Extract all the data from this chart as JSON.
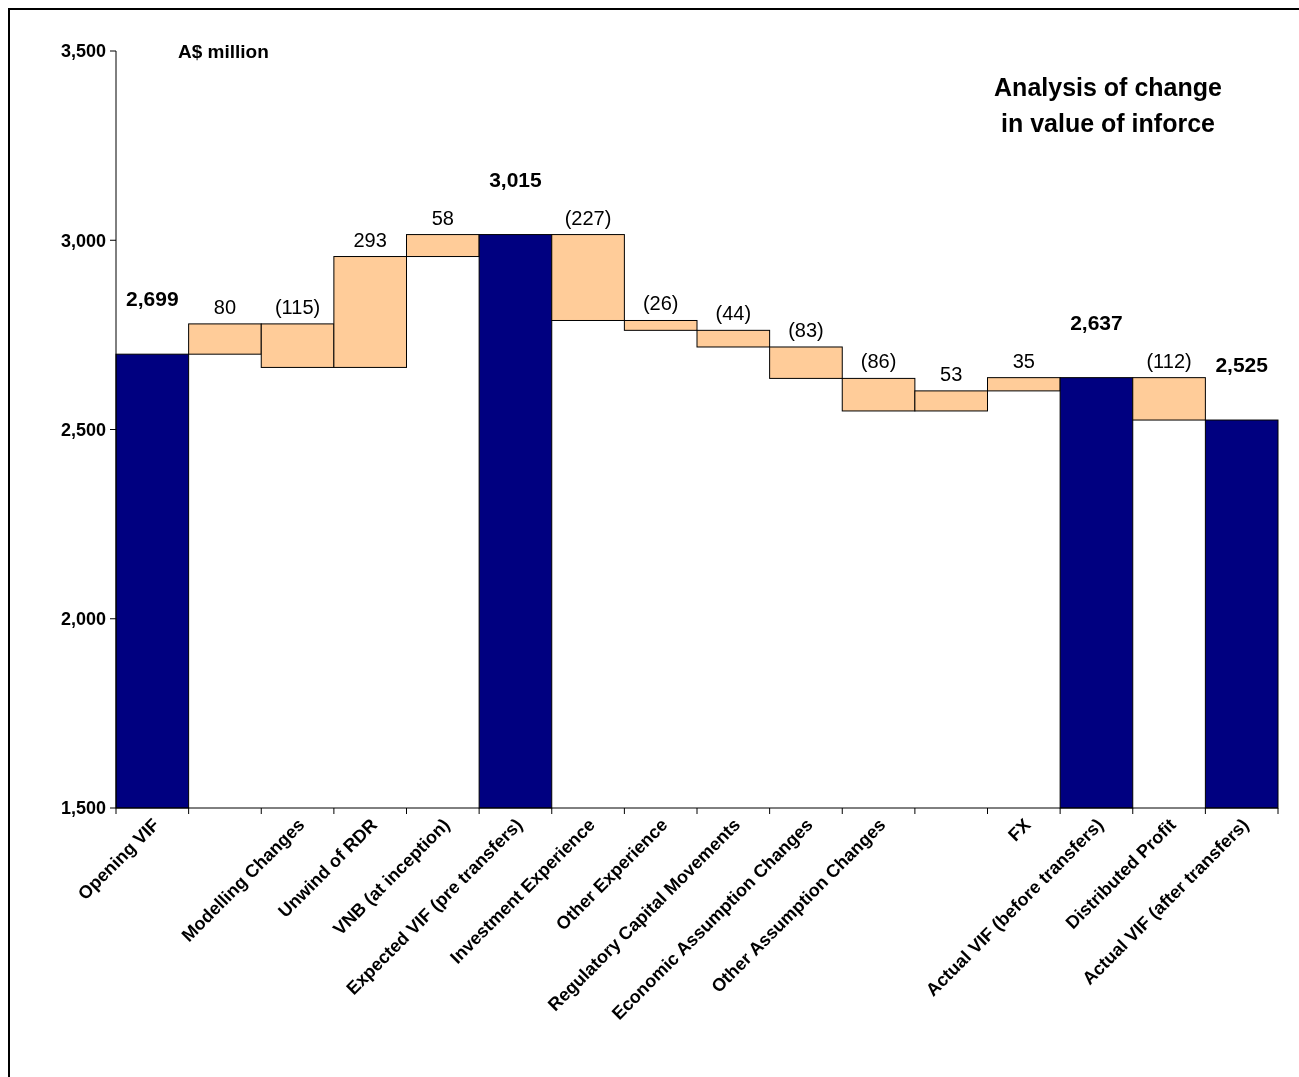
{
  "chart_data": {
    "type": "bar",
    "title": "Analysis of change in value of inforce",
    "annotations": [
      "A$ million"
    ],
    "categories": [
      "Opening VIF",
      null,
      "Modelling Changes",
      "Unwind of RDR",
      "VNB (at inception)",
      "Expected VIF (pre transfers)",
      "Investment Experience",
      "Other Experience",
      "Regulatory Capital Movements",
      "Economic Assumption Changes",
      "Other Assumption Changes",
      null,
      "FX",
      "Actual VIF (before transfers)",
      "Distributed Profit",
      "Actual VIF (after transfers)"
    ],
    "values": [
      2699,
      80,
      -115,
      293,
      58,
      3015,
      -227,
      -26,
      -44,
      -83,
      -86,
      53,
      35,
      2637,
      -112,
      2525
    ],
    "base": [
      null,
      2699,
      2779,
      2664,
      2957,
      null,
      3015,
      2788,
      2762,
      2718,
      2635,
      2549,
      2602,
      null,
      2637,
      null
    ],
    "colors": [
      "#000080",
      "#ffcc99",
      "#ffcc99",
      "#ffcc99",
      "#ffcc99",
      "#000080",
      "#ffcc99",
      "#ffcc99",
      "#ffcc99",
      "#ffcc99",
      "#ffcc99",
      "#ffcc99",
      "#ffcc99",
      "#000080",
      "#ffcc99",
      "#000080"
    ],
    "value_labels": [
      "2,699",
      "80",
      "(115)",
      "293",
      "58",
      "3,015",
      "(227)",
      "(26)",
      "(44)",
      "(83)",
      "(86)",
      "53",
      "35",
      "2,637",
      "(112)",
      "2,525"
    ],
    "ylim": [
      1500,
      3500
    ],
    "yticks": [
      {
        "value": 1500,
        "label": "1,500"
      },
      {
        "value": 2000,
        "label": "2,000"
      },
      {
        "value": 2500,
        "label": "2,500"
      },
      {
        "value": 3000,
        "label": "3,000"
      },
      {
        "value": 3500,
        "label": "3,500"
      }
    ],
    "grid": false
  }
}
